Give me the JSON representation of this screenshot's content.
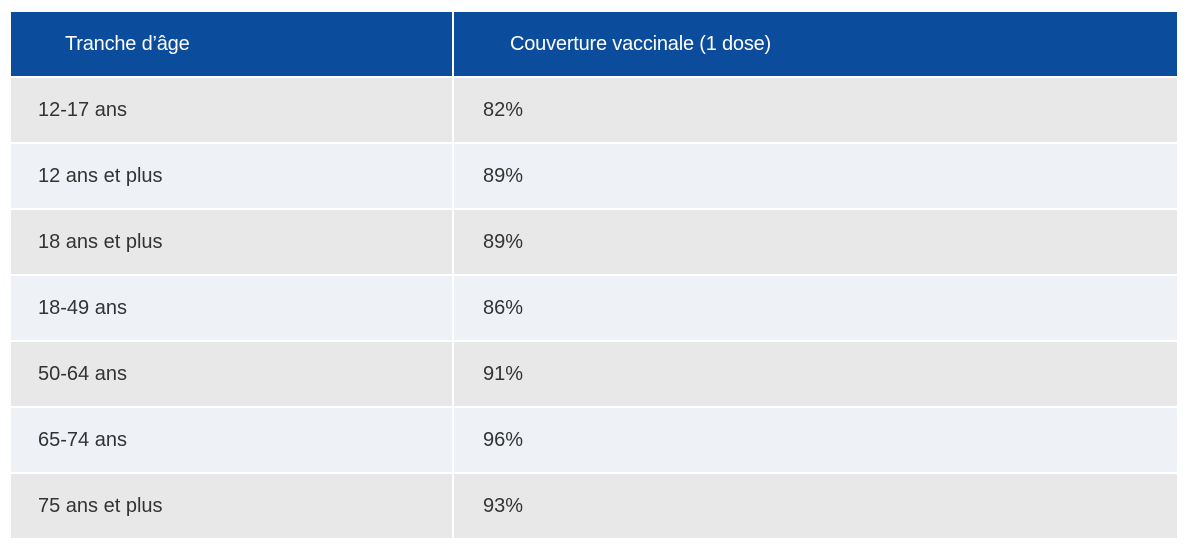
{
  "table": {
    "headers": [
      "Tranche d’âge",
      "Couverture vaccinale (1 dose)"
    ],
    "rows": [
      [
        "12-17 ans",
        "82%"
      ],
      [
        "12 ans et plus",
        "89%"
      ],
      [
        "18 ans et plus",
        "89%"
      ],
      [
        "18-49 ans",
        "86%"
      ],
      [
        "50-64 ans",
        "91%"
      ],
      [
        "65-74 ans",
        "96%"
      ],
      [
        "75 ans et plus",
        "93%"
      ]
    ]
  },
  "colors": {
    "header_background": "#0b4c9c",
    "header_text": "#ffffff",
    "row_odd": "#e8e8e8",
    "row_even": "#eef2f7",
    "body_text": "#333333"
  }
}
